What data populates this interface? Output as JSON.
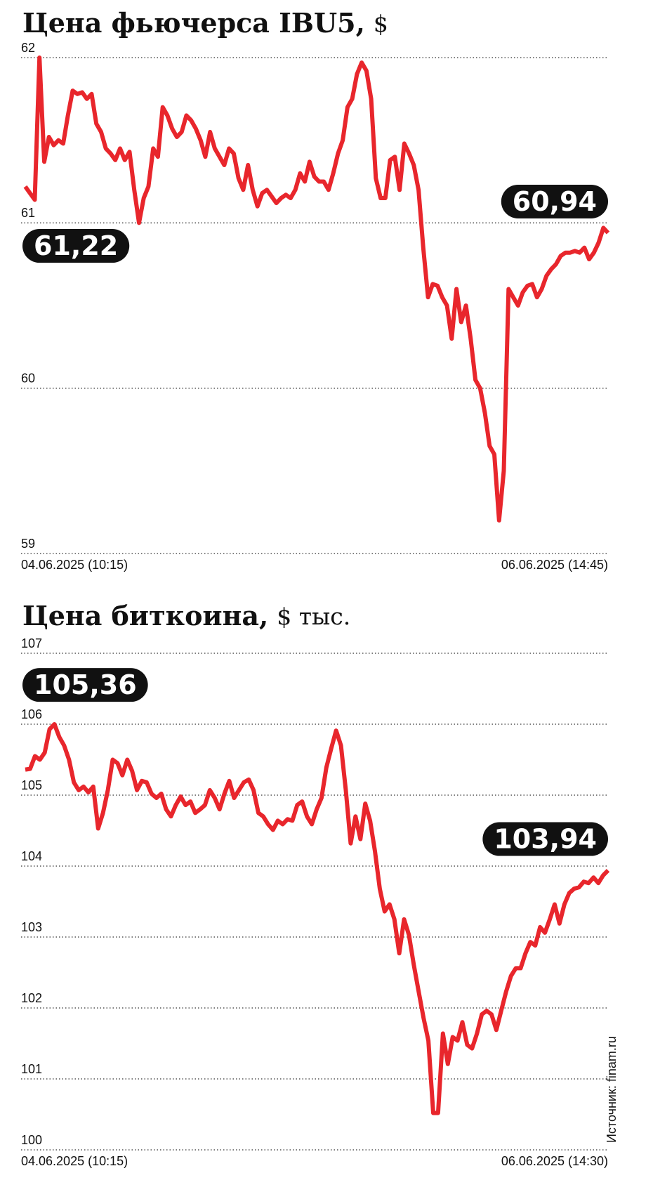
{
  "chart_data": [
    {
      "type": "line",
      "title": "Цена фьючерса IBU5,",
      "unit": "$",
      "color": "#e8262c",
      "ylim": [
        59,
        62
      ],
      "yticks": [
        59,
        60,
        61,
        62
      ],
      "grid": true,
      "x_labels": [
        "04.06.2025 (10:15)",
        "06.06.2025 (14:45)"
      ],
      "start_label": "61,22",
      "end_label": "60,94",
      "values": [
        61.22,
        61.18,
        61.14,
        62.0,
        61.37,
        61.52,
        61.47,
        61.5,
        61.48,
        61.65,
        61.8,
        61.78,
        61.79,
        61.75,
        61.78,
        61.6,
        61.55,
        61.45,
        61.42,
        61.38,
        61.45,
        61.38,
        61.43,
        61.2,
        61.0,
        61.15,
        61.22,
        61.45,
        61.4,
        61.7,
        61.65,
        61.57,
        61.52,
        61.55,
        61.65,
        61.62,
        61.57,
        61.5,
        61.4,
        61.55,
        61.45,
        61.4,
        61.35,
        61.45,
        61.42,
        61.27,
        61.2,
        61.35,
        61.2,
        61.1,
        61.18,
        61.2,
        61.16,
        61.12,
        61.15,
        61.17,
        61.15,
        61.2,
        61.3,
        61.25,
        61.37,
        61.28,
        61.25,
        61.25,
        61.2,
        61.3,
        61.42,
        61.5,
        61.7,
        61.75,
        61.9,
        61.97,
        61.92,
        61.75,
        61.27,
        61.15,
        61.15,
        61.38,
        61.4,
        61.2,
        61.48,
        61.42,
        61.35,
        61.2,
        60.85,
        60.55,
        60.63,
        60.62,
        60.55,
        60.5,
        60.3,
        60.6,
        60.4,
        60.5,
        60.3,
        60.05,
        60.0,
        59.85,
        59.65,
        59.6,
        59.2,
        59.5,
        60.6,
        60.55,
        60.5,
        60.58,
        60.62,
        60.63,
        60.55,
        60.6,
        60.68,
        60.72,
        60.75,
        60.8,
        60.82,
        60.82,
        60.83,
        60.82,
        60.85,
        60.78,
        60.82,
        60.88,
        60.97,
        60.94
      ]
    },
    {
      "type": "line",
      "title": "Цена биткоина,",
      "unit": "$ тыс.",
      "color": "#e8262c",
      "ylim": [
        100,
        107
      ],
      "yticks": [
        100,
        101,
        102,
        103,
        104,
        105,
        106,
        107
      ],
      "grid": true,
      "x_labels": [
        "04.06.2025 (10:15)",
        "06.06.2025 (14:30)"
      ],
      "start_label": "105,36",
      "end_label": "103,94",
      "source": "Источник: finam.ru",
      "values": [
        105.36,
        105.37,
        105.55,
        105.5,
        105.6,
        105.93,
        106.0,
        105.82,
        105.7,
        105.5,
        105.18,
        105.07,
        105.12,
        105.04,
        105.12,
        104.53,
        104.75,
        105.07,
        105.5,
        105.45,
        105.28,
        105.5,
        105.34,
        105.07,
        105.2,
        105.18,
        105.02,
        104.96,
        105.02,
        104.8,
        104.7,
        104.86,
        104.98,
        104.86,
        104.91,
        104.75,
        104.8,
        104.86,
        105.07,
        104.96,
        104.8,
        105.02,
        105.2,
        104.96,
        105.07,
        105.18,
        105.22,
        105.07,
        104.75,
        104.7,
        104.59,
        104.51,
        104.64,
        104.59,
        104.66,
        104.64,
        104.86,
        104.91,
        104.7,
        104.59,
        104.8,
        104.96,
        105.39,
        105.66,
        105.91,
        105.7,
        105.07,
        104.32,
        104.7,
        104.38,
        104.88,
        104.64,
        104.21,
        103.68,
        103.36,
        103.46,
        103.25,
        102.77,
        103.25,
        103.03,
        102.61,
        102.23,
        101.86,
        101.54,
        100.52,
        100.52,
        101.64,
        101.21,
        101.59,
        101.54,
        101.8,
        101.48,
        101.43,
        101.64,
        101.91,
        101.96,
        101.91,
        101.69,
        101.96,
        102.23,
        102.45,
        102.56,
        102.56,
        102.77,
        102.93,
        102.88,
        103.14,
        103.06,
        103.25,
        103.46,
        103.19,
        103.46,
        103.62,
        103.68,
        103.7,
        103.78,
        103.76,
        103.84,
        103.76,
        103.87,
        103.94
      ]
    }
  ]
}
